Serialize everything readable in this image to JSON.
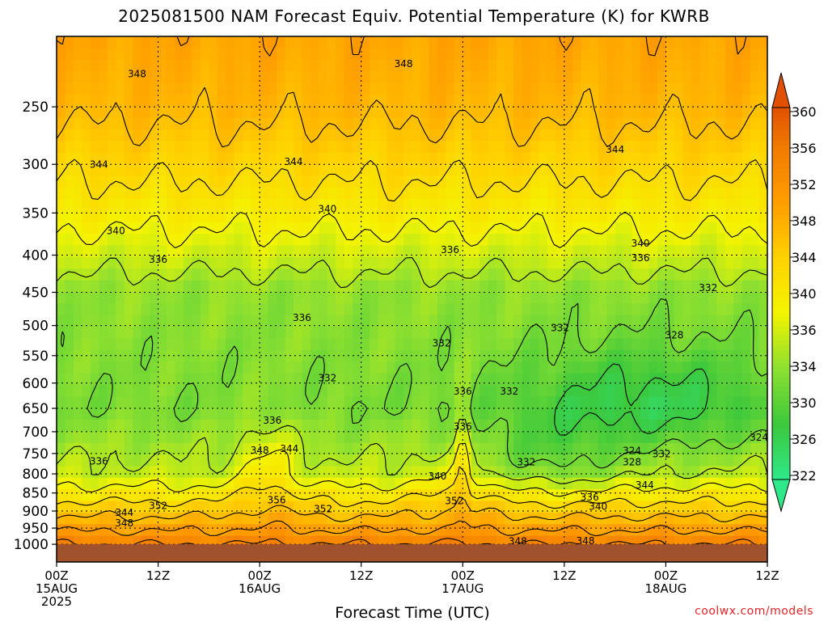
{
  "page": {
    "title": "2025081500 NAM Forecast Equiv. Potential Temperature (K) for KWRB",
    "credit": "coolwx.com/models"
  },
  "chart_data": {
    "type": "heatmap",
    "title": "2025081500 NAM Forecast Equiv. Potential Temperature (K) for KWRB",
    "xlabel": "Forecast Time (UTC)",
    "ylabel": "",
    "x_ticks": [
      {
        "hour": 0,
        "lines": [
          "00Z",
          "15AUG",
          "2025"
        ]
      },
      {
        "hour": 12,
        "lines": [
          "12Z"
        ]
      },
      {
        "hour": 24,
        "lines": [
          "00Z",
          "16AUG"
        ]
      },
      {
        "hour": 36,
        "lines": [
          "12Z"
        ]
      },
      {
        "hour": 48,
        "lines": [
          "00Z",
          "17AUG"
        ]
      },
      {
        "hour": 60,
        "lines": [
          "12Z"
        ]
      },
      {
        "hour": 72,
        "lines": [
          "00Z",
          "18AUG"
        ]
      },
      {
        "hour": 84,
        "lines": [
          "12Z"
        ]
      }
    ],
    "xlim": [
      0,
      84
    ],
    "y_ticks": [
      250,
      300,
      350,
      400,
      450,
      500,
      550,
      600,
      650,
      700,
      750,
      800,
      850,
      900,
      950,
      1000
    ],
    "ylim": [
      200,
      1010
    ],
    "y_scale": "log-pressure",
    "grid": true,
    "surface_pressure_hPa": 1000,
    "colorbar": {
      "labels": [
        360,
        356,
        352,
        348,
        344,
        340,
        336,
        334,
        330,
        326,
        322
      ],
      "range": [
        322,
        362
      ],
      "colors": [
        {
          "value": 322,
          "color": "#2ee88a"
        },
        {
          "value": 328,
          "color": "#3cc83c"
        },
        {
          "value": 334,
          "color": "#8ee030"
        },
        {
          "value": 340,
          "color": "#f4f400"
        },
        {
          "value": 346,
          "color": "#ffd000"
        },
        {
          "value": 352,
          "color": "#ff9c00"
        },
        {
          "value": 358,
          "color": "#f07800"
        },
        {
          "value": 362,
          "color": "#e05000"
        }
      ]
    },
    "contour_labels": [
      {
        "hour": 9.5,
        "p": 225,
        "text": "348"
      },
      {
        "hour": 41,
        "p": 218,
        "text": "348"
      },
      {
        "hour": 5,
        "p": 300,
        "text": "344"
      },
      {
        "hour": 28,
        "p": 297,
        "text": "344"
      },
      {
        "hour": 66,
        "p": 286,
        "text": "344"
      },
      {
        "hour": 32,
        "p": 345,
        "text": "340"
      },
      {
        "hour": 7,
        "p": 370,
        "text": "340"
      },
      {
        "hour": 69,
        "p": 385,
        "text": "340"
      },
      {
        "hour": 46.5,
        "p": 393,
        "text": "336"
      },
      {
        "hour": 12,
        "p": 405,
        "text": "336"
      },
      {
        "hour": 69,
        "p": 403,
        "text": "336"
      },
      {
        "hour": 77,
        "p": 443,
        "text": "332"
      },
      {
        "hour": 29,
        "p": 487,
        "text": "336"
      },
      {
        "hour": 59.5,
        "p": 503,
        "text": "332"
      },
      {
        "hour": 45.5,
        "p": 528,
        "text": "332"
      },
      {
        "hour": 73,
        "p": 515,
        "text": "328"
      },
      {
        "hour": 32,
        "p": 590,
        "text": "332"
      },
      {
        "hour": 48,
        "p": 615,
        "text": "336"
      },
      {
        "hour": 53.5,
        "p": 615,
        "text": "332"
      },
      {
        "hour": 25.5,
        "p": 675,
        "text": "336"
      },
      {
        "hour": 48,
        "p": 688,
        "text": "336"
      },
      {
        "hour": 24,
        "p": 742,
        "text": "348"
      },
      {
        "hour": 27.5,
        "p": 738,
        "text": "344"
      },
      {
        "hour": 5,
        "p": 768,
        "text": "336"
      },
      {
        "hour": 68,
        "p": 743,
        "text": "324"
      },
      {
        "hour": 71.5,
        "p": 750,
        "text": "332"
      },
      {
        "hour": 83,
        "p": 712,
        "text": "324"
      },
      {
        "hour": 55.5,
        "p": 770,
        "text": "332"
      },
      {
        "hour": 68,
        "p": 770,
        "text": "328"
      },
      {
        "hour": 45,
        "p": 805,
        "text": "340"
      },
      {
        "hour": 69.5,
        "p": 828,
        "text": "344"
      },
      {
        "hour": 63,
        "p": 860,
        "text": "336"
      },
      {
        "hour": 64,
        "p": 886,
        "text": "340"
      },
      {
        "hour": 12,
        "p": 884,
        "text": "352"
      },
      {
        "hour": 26,
        "p": 868,
        "text": "356"
      },
      {
        "hour": 31.5,
        "p": 893,
        "text": "352"
      },
      {
        "hour": 47,
        "p": 870,
        "text": "352"
      },
      {
        "hour": 8,
        "p": 903,
        "text": "344"
      },
      {
        "hour": 8,
        "p": 934,
        "text": "348"
      },
      {
        "hour": 54.5,
        "p": 990,
        "text": "348"
      },
      {
        "hour": 62.5,
        "p": 988,
        "text": "348"
      }
    ]
  }
}
